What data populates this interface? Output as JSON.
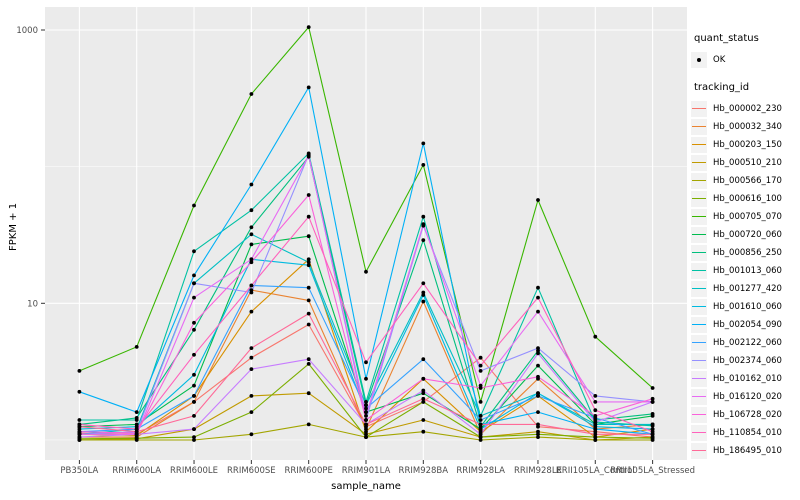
{
  "panel": {
    "bg": "#EBEBEB",
    "grid_major": "#FFFFFF",
    "grid_minor": "#F7F7F7",
    "tick_color": "#333333",
    "tick_label_color": "#4D4D4D",
    "point_color": "#000000"
  },
  "chart_data": {
    "type": "line",
    "title": "",
    "xlabel": "sample_name",
    "ylabel": "FPKM + 1",
    "y_scale": "log10",
    "ylim": [
      0.75,
      1450
    ],
    "grid": true,
    "legend_position": "right",
    "y_ticks": [
      {
        "label": "1000",
        "value": 1000
      },
      {
        "label": "10",
        "value": 10
      }
    ],
    "y_minor": [
      100,
      1
    ],
    "categories": [
      "PB350LA",
      "RRIM600LA",
      "RRIM600LE",
      "RRIM600SE",
      "RRIM600PE",
      "RRIM901LA",
      "RRIM928BA",
      "RRIM928LA",
      "RRIM928LE",
      "RRII105LA_Control",
      "RRII105LA_Stressed"
    ],
    "legend": {
      "quant_status_title": "quant_status",
      "quant_status_items": [
        {
          "label": "OK",
          "marker": "point-icon"
        }
      ],
      "tracking_id_title": "tracking_id"
    },
    "series": [
      {
        "name": "Hb_000002_230",
        "color": "#F8766D",
        "values": [
          1.12,
          1.1,
          1.9,
          4.0,
          7.0,
          1.25,
          1.9,
          4.0,
          1.25,
          1.15,
          1.05
        ]
      },
      {
        "name": "Hb_000032_340",
        "color": "#EA8331",
        "values": [
          1.05,
          1.05,
          1.9,
          12.5,
          10.5,
          1.2,
          10.3,
          1.1,
          2.8,
          1.2,
          1.3
        ]
      },
      {
        "name": "Hb_000203_150",
        "color": "#D89000",
        "values": [
          1.1,
          1.08,
          2.1,
          8.7,
          21,
          1.15,
          2.8,
          1.15,
          2.1,
          1.05,
          1.2
        ]
      },
      {
        "name": "Hb_000510_210",
        "color": "#C09B00",
        "values": [
          1.0,
          1.02,
          1.2,
          2.1,
          2.2,
          1.1,
          1.4,
          1.05,
          1.15,
          1.0,
          1.05
        ]
      },
      {
        "name": "Hb_000566_170",
        "color": "#A3A500",
        "values": [
          1.0,
          1.0,
          1.0,
          1.1,
          1.3,
          1.05,
          1.15,
          1.0,
          1.05,
          1.0,
          1.0
        ]
      },
      {
        "name": "Hb_000616_100",
        "color": "#7CAE00",
        "values": [
          1.02,
          1.03,
          1.05,
          1.6,
          3.6,
          1.05,
          1.9,
          1.05,
          1.1,
          1.05,
          1.03
        ]
      },
      {
        "name": "Hb_000705_070",
        "color": "#39B600",
        "values": [
          3.2,
          4.8,
          52,
          340,
          1050,
          17,
          103,
          1.9,
          57,
          5.7,
          2.4
        ]
      },
      {
        "name": "Hb_000720_060",
        "color": "#00BB4E",
        "values": [
          1.25,
          1.3,
          2.5,
          27,
          31,
          1.6,
          2.2,
          1.2,
          3.5,
          1.3,
          1.5
        ]
      },
      {
        "name": "Hb_000856_250",
        "color": "#00BF7D",
        "values": [
          1.3,
          1.45,
          6.4,
          36,
          118,
          1.8,
          29,
          1.25,
          4.5,
          1.4,
          1.55
        ]
      },
      {
        "name": "Hb_001013_060",
        "color": "#00C1A3",
        "values": [
          1.4,
          1.4,
          24,
          48,
          125,
          1.9,
          43,
          1.5,
          13,
          1.35,
          1.27
        ]
      },
      {
        "name": "Hb_001277_420",
        "color": "#00BFC4",
        "values": [
          1.1,
          1.2,
          14,
          32,
          20,
          1.8,
          12,
          1.5,
          2.2,
          1.3,
          1.3
        ]
      },
      {
        "name": "Hb_001610_060",
        "color": "#00BAE0",
        "values": [
          1.2,
          1.25,
          3.0,
          21,
          19,
          1.6,
          11.5,
          1.2,
          2.2,
          1.25,
          1.2
        ]
      },
      {
        "name": "Hb_002054_090",
        "color": "#00B0F6",
        "values": [
          2.25,
          1.6,
          16,
          74,
          380,
          2.8,
          148,
          1.3,
          1.6,
          1.2,
          1.1
        ]
      },
      {
        "name": "Hb_002122_060",
        "color": "#35A2FF",
        "values": [
          1.15,
          1.2,
          2.1,
          13.5,
          13,
          1.7,
          3.9,
          1.4,
          2.1,
          1.45,
          1.1
        ]
      },
      {
        "name": "Hb_002374_060",
        "color": "#9590FF",
        "values": [
          1.1,
          1.15,
          14,
          12,
          122,
          1.4,
          37,
          3.2,
          4.7,
          2.1,
          1.9
        ]
      },
      {
        "name": "Hb_010162_010",
        "color": "#C77CFF",
        "values": [
          1.05,
          1.1,
          1.2,
          3.3,
          3.9,
          1.3,
          2.3,
          1.1,
          4.3,
          1.35,
          1.9
        ]
      },
      {
        "name": "Hb_016120_020",
        "color": "#E76BF3",
        "values": [
          1.1,
          1.1,
          11,
          21,
          120,
          1.5,
          38,
          2.5,
          8.7,
          1.9,
          1.9
        ]
      },
      {
        "name": "Hb_106728_020",
        "color": "#FA62DB",
        "values": [
          1.15,
          1.12,
          7.2,
          20,
          62,
          1.4,
          2.8,
          2.4,
          2.9,
          1.5,
          2.0
        ]
      },
      {
        "name": "Hb_110854_010",
        "color": "#FF62BC",
        "values": [
          1.3,
          1.2,
          4.2,
          13.5,
          43,
          3.7,
          14,
          3.5,
          11,
          1.65,
          1.15
        ]
      },
      {
        "name": "Hb_186495_010",
        "color": "#FF6A98",
        "values": [
          1.25,
          1.15,
          1.5,
          4.7,
          8.4,
          1.3,
          2.0,
          1.3,
          1.3,
          1.1,
          1.1
        ]
      }
    ]
  }
}
